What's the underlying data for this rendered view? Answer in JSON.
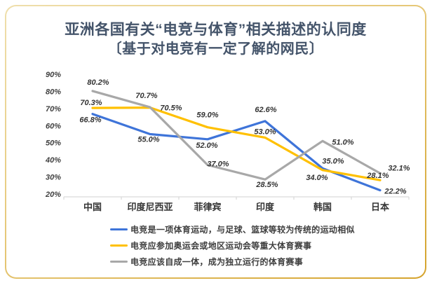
{
  "header": {
    "title": "亚洲各国有关“电竞与体育”相关描述的认同度",
    "subtitle": "〔基于对电竞有一定了解的网民〕"
  },
  "chart_data": {
    "type": "line",
    "title": "亚洲各国有关“电竞与体育”相关描述的认同度",
    "subtitle": "〔基于对电竞有一定了解的网民〕",
    "categories": [
      "中国",
      "印度尼西亚",
      "菲律宾",
      "印度",
      "韩国",
      "日本"
    ],
    "series": [
      {
        "name": "电竞是一项体育运动，与足球、篮球等较为传统的运动相似",
        "color": "#3E74D9",
        "values": [
          66.8,
          55.0,
          52.0,
          62.6,
          35.0,
          22.2
        ],
        "label_offsets": [
          [
            -3,
            12
          ],
          [
            -2,
            11
          ],
          [
            -1,
            12
          ],
          [
            1,
            -13
          ],
          [
            15,
            -7
          ],
          [
            22,
            5
          ]
        ]
      },
      {
        "name": "电竞应参加奥运会或地区运动会等重大体育赛事",
        "color": "#FFC000",
        "values": [
          70.3,
          70.5,
          59.0,
          53.0,
          34.0,
          28.1
        ],
        "label_offsets": [
          [
            -2,
            -4
          ],
          [
            30,
            4
          ],
          [
            0,
            -14
          ],
          [
            0,
            -5
          ],
          [
            -8,
            14
          ],
          [
            -3,
            -3
          ]
        ]
      },
      {
        "name": "电竞应该自成一体，成为独立运行的体育赛事",
        "color": "#A8A8A8",
        "values": [
          80.2,
          70.7,
          37.0,
          28.5,
          51.0,
          32.1
        ],
        "label_offsets": [
          [
            8,
            -9
          ],
          [
            -5,
            -13
          ],
          [
            15,
            2
          ],
          [
            3,
            11
          ],
          [
            29,
            5
          ],
          [
            27,
            -4
          ]
        ]
      }
    ],
    "ylabel": "",
    "xlabel": "",
    "ylim": [
      20,
      90
    ],
    "ytick_step": 10,
    "ytick_format": "percent",
    "grid": false,
    "legend_position": "bottom",
    "axis_color": "#D9D9D9"
  },
  "colors": {
    "title": "#44546A",
    "border_gold_light": "#EFDFAC",
    "border_gold_dark": "#D5A32C"
  }
}
